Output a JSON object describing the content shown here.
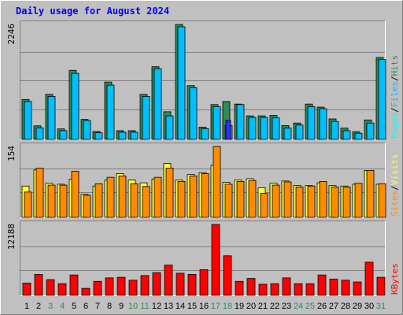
{
  "title": "Daily usage for August 2024",
  "colors": {
    "background": "#c0c0c0",
    "frame_light": "#ffffff",
    "frame_dark": "#808080",
    "plot_bg": "#c0c0c0",
    "grid": "#808080",
    "title": "#0000ff",
    "hits": "#2e8b57",
    "files": "#00bfff",
    "pages": "#00ffff",
    "pages_marker": "#2f2fff",
    "visits": "#ffff40",
    "sites": "#ff8c00",
    "kbytes": "#ff0000",
    "weekend_tick": "#2e8b57",
    "weekday_tick": "#000000"
  },
  "chart_data": [
    {
      "type": "bar",
      "panel": "top",
      "ymax_label": "2246",
      "legend": [
        {
          "text": "Pages",
          "color_key": "pages"
        },
        {
          "text": "/",
          "color_key": "weekday_tick"
        },
        {
          "text": "Files",
          "color_key": "files"
        },
        {
          "text": "/",
          "color_key": "weekday_tick"
        },
        {
          "text": "Hits",
          "color_key": "hits"
        }
      ],
      "ylim": [
        0,
        2246
      ],
      "series": [
        {
          "name": "Hits",
          "values": [
            780,
            265,
            880,
            205,
            1350,
            390,
            155,
            1120,
            170,
            170,
            880,
            1420,
            540,
            2246,
            1050,
            240,
            680,
            740,
            690,
            460,
            460,
            470,
            270,
            320,
            690,
            630,
            400,
            220,
            150,
            380,
            1600
          ]
        },
        {
          "name": "Files",
          "values": [
            740,
            225,
            840,
            170,
            1290,
            370,
            130,
            1060,
            140,
            140,
            840,
            1380,
            460,
            2200,
            1010,
            210,
            640,
            270,
            680,
            430,
            430,
            420,
            220,
            280,
            640,
            600,
            350,
            170,
            120,
            320,
            1560
          ]
        },
        {
          "name": "Pages",
          "values": [
            0,
            0,
            0,
            0,
            0,
            0,
            0,
            0,
            0,
            0,
            0,
            0,
            0,
            0,
            0,
            0,
            0,
            370,
            0,
            0,
            0,
            0,
            0,
            0,
            0,
            0,
            0,
            0,
            0,
            0,
            0
          ]
        }
      ]
    },
    {
      "type": "bar",
      "panel": "middle",
      "ymax_label": "154",
      "legend": [
        {
          "text": "Sites",
          "color_key": "sites"
        },
        {
          "text": "/",
          "color_key": "weekday_tick"
        },
        {
          "text": "Visits",
          "color_key": "visits"
        }
      ],
      "ylim": [
        0,
        154
      ],
      "series": [
        {
          "name": "Visits",
          "values": [
            68,
            103,
            74,
            72,
            83,
            50,
            68,
            81,
            95,
            81,
            75,
            83,
            117,
            81,
            93,
            97,
            113,
            76,
            81,
            84,
            64,
            74,
            79,
            69,
            69,
            75,
            69,
            68,
            72,
            102,
            72
          ]
        },
        {
          "name": "Sites",
          "values": [
            55,
            107,
            70,
            70,
            100,
            48,
            73,
            87,
            90,
            73,
            67,
            87,
            107,
            78,
            90,
            95,
            154,
            72,
            78,
            80,
            52,
            70,
            77,
            66,
            68,
            78,
            66,
            66,
            74,
            102,
            73
          ]
        }
      ]
    },
    {
      "type": "bar",
      "panel": "bottom",
      "ymax_label": "12188",
      "legend": [
        {
          "text": "KBytes",
          "color_key": "kbytes"
        }
      ],
      "ylim": [
        0,
        12188
      ],
      "series": [
        {
          "name": "KBytes",
          "values": [
            2100,
            3600,
            2700,
            2000,
            3500,
            1200,
            2400,
            3000,
            3100,
            2600,
            3400,
            3900,
            5200,
            3800,
            3600,
            4400,
            12188,
            6800,
            2400,
            2900,
            1900,
            2000,
            3000,
            2000,
            2000,
            3500,
            2800,
            2600,
            2300,
            5700,
            3100
          ]
        }
      ]
    }
  ],
  "x_axis": {
    "ticks": [
      "1",
      "2",
      "3",
      "4",
      "5",
      "6",
      "7",
      "8",
      "9",
      "10",
      "11",
      "12",
      "13",
      "14",
      "15",
      "16",
      "17",
      "18",
      "19",
      "20",
      "21",
      "22",
      "23",
      "24",
      "25",
      "26",
      "27",
      "28",
      "29",
      "30",
      "31"
    ],
    "weekend": [
      false,
      false,
      true,
      true,
      false,
      false,
      false,
      false,
      false,
      true,
      true,
      false,
      false,
      false,
      false,
      false,
      true,
      true,
      false,
      false,
      false,
      false,
      false,
      true,
      true,
      false,
      false,
      false,
      false,
      false,
      true
    ]
  }
}
